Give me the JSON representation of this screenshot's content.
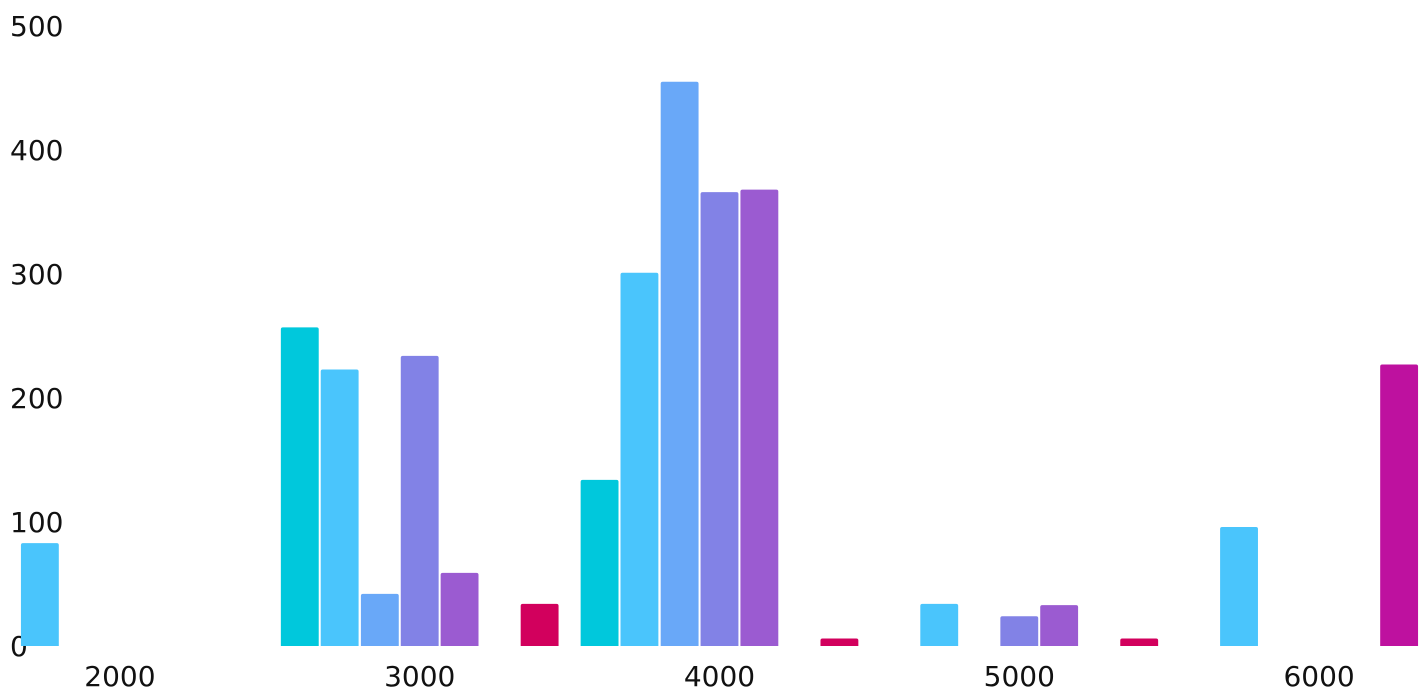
{
  "chart_data": {
    "type": "bar",
    "title": "",
    "xlabel": "",
    "ylabel": "",
    "xlim": [
      1600,
      6350
    ],
    "ylim": [
      0,
      500
    ],
    "x_ticks": [
      "2000",
      "3000",
      "4000",
      "5000",
      "6000"
    ],
    "x_tick_values": [
      2000,
      3000,
      4000,
      5000,
      6000
    ],
    "y_ticks": [
      "0",
      "100",
      "200",
      "300",
      "400",
      "500"
    ],
    "y_tick_values": [
      0,
      100,
      200,
      300,
      400,
      500
    ],
    "grid": false,
    "legend": "none",
    "bar_width": 133,
    "palette": {
      "teal": "#00c8dc",
      "sky": "#4ac5fc",
      "blue": "#69a8f8",
      "periwinkle": "#8282e6",
      "violet": "#9b5bd1",
      "crimson": "#d2005d",
      "magenta": "#be119f"
    },
    "bars": [
      {
        "x": 1733,
        "value": 83,
        "color": "#4ac5fc"
      },
      {
        "x": 2600,
        "value": 257,
        "color": "#00c8dc"
      },
      {
        "x": 2733,
        "value": 223,
        "color": "#4ac5fc"
      },
      {
        "x": 2867,
        "value": 42,
        "color": "#69a8f8"
      },
      {
        "x": 3000,
        "value": 234,
        "color": "#8282e6"
      },
      {
        "x": 3133,
        "value": 59,
        "color": "#9b5bd1"
      },
      {
        "x": 3400,
        "value": 34,
        "color": "#d2005d"
      },
      {
        "x": 3600,
        "value": 134,
        "color": "#00c8dc"
      },
      {
        "x": 3733,
        "value": 301,
        "color": "#4ac5fc"
      },
      {
        "x": 3867,
        "value": 455,
        "color": "#69a8f8"
      },
      {
        "x": 4000,
        "value": 366,
        "color": "#8282e6"
      },
      {
        "x": 4133,
        "value": 368,
        "color": "#9b5bd1"
      },
      {
        "x": 4400,
        "value": 6,
        "color": "#d2005d"
      },
      {
        "x": 4733,
        "value": 34,
        "color": "#4ac5fc"
      },
      {
        "x": 5000,
        "value": 24,
        "color": "#8282e6"
      },
      {
        "x": 5133,
        "value": 33,
        "color": "#9b5bd1"
      },
      {
        "x": 5400,
        "value": 6,
        "color": "#d2005d"
      },
      {
        "x": 5733,
        "value": 96,
        "color": "#4ac5fc"
      },
      {
        "x": 6267,
        "value": 227,
        "color": "#be119f"
      }
    ]
  }
}
